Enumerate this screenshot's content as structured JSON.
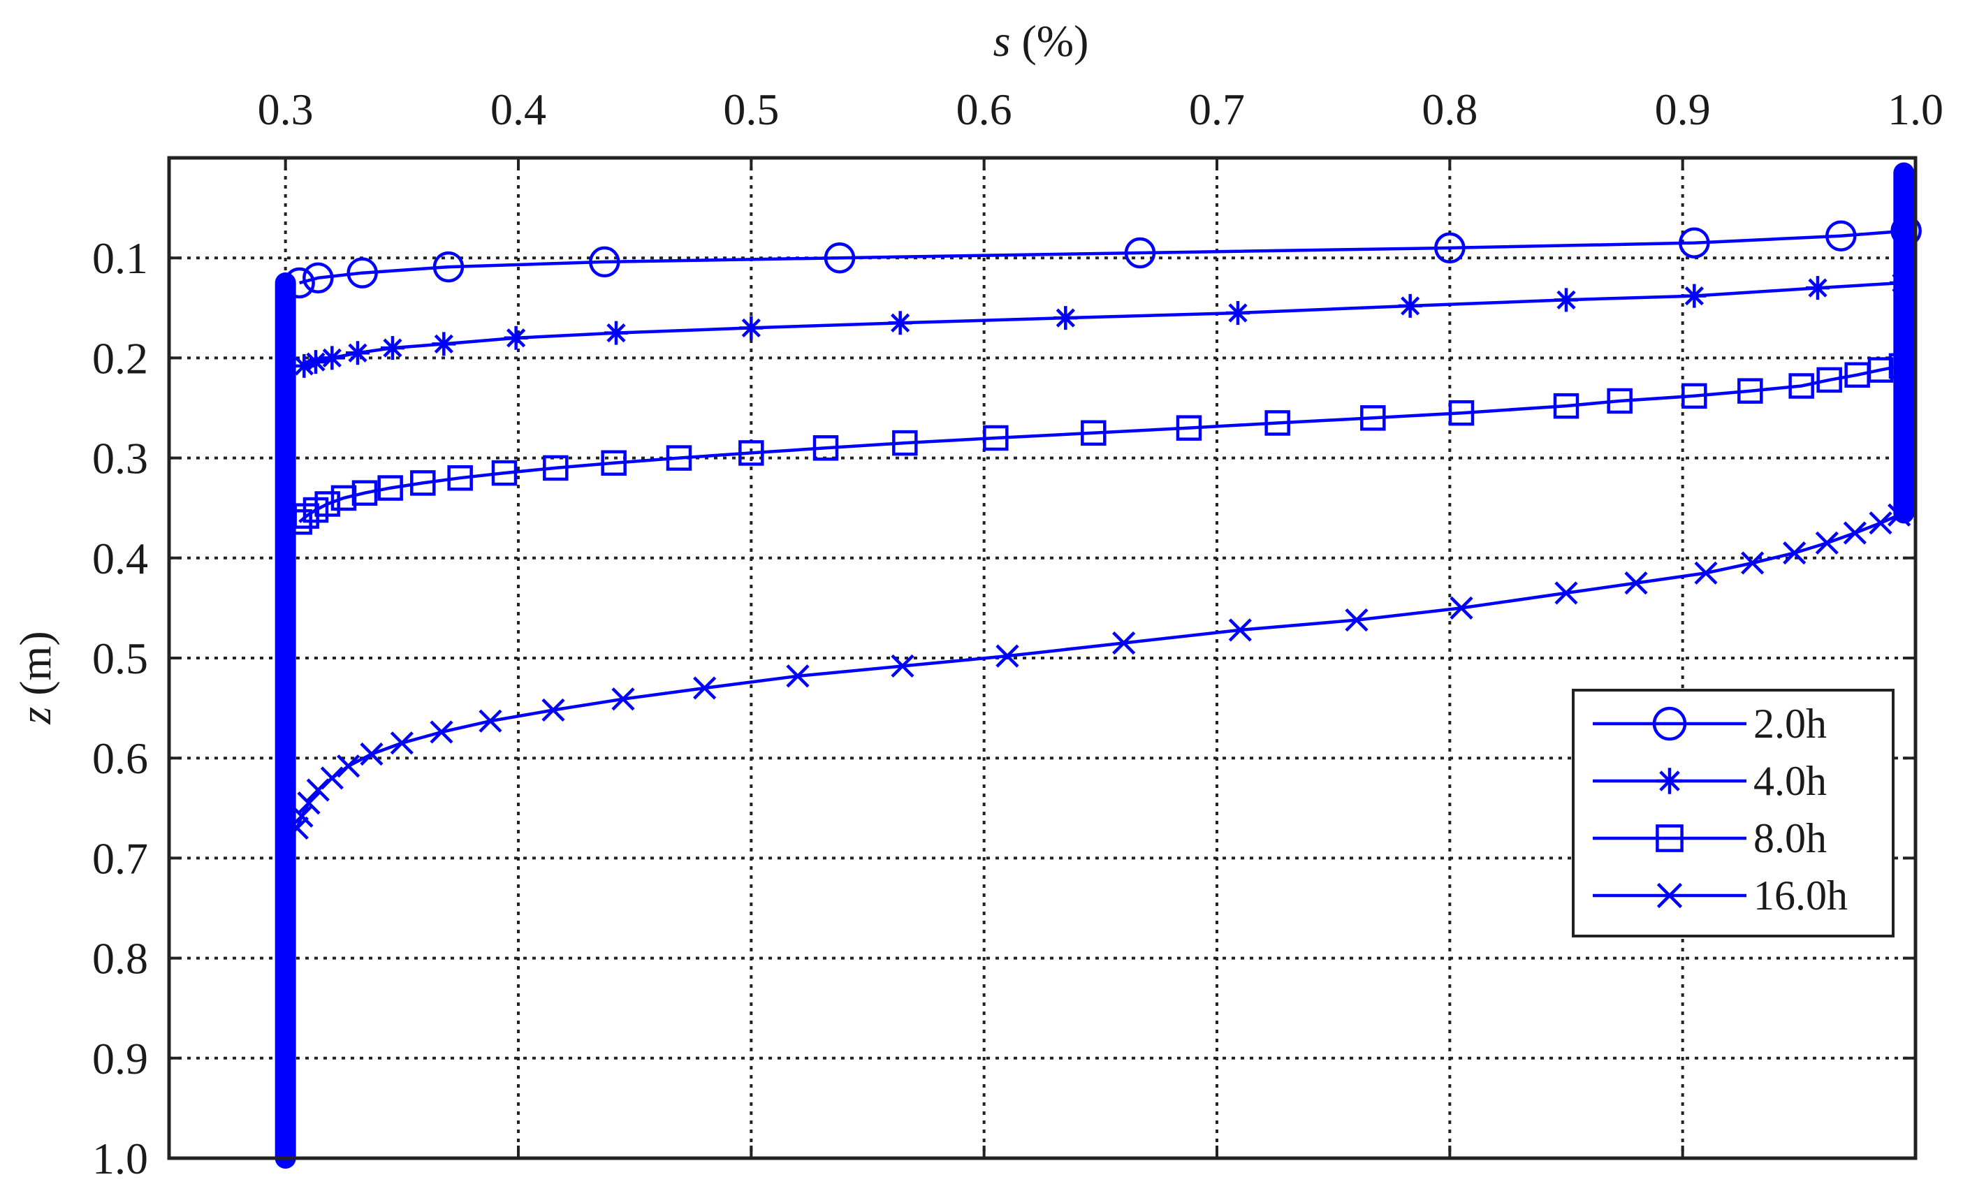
{
  "chart_data": {
    "type": "line",
    "title": "",
    "xlabel": {
      "symbol": "s",
      "unit": "(%)"
    },
    "ylabel": {
      "symbol": "z",
      "unit": "(m)"
    },
    "x_axis_position": "top",
    "y_axis_reversed": true,
    "xlim": [
      0.25,
      1.0
    ],
    "ylim": [
      0.0,
      1.0
    ],
    "xticks": [
      0.3,
      0.4,
      0.5,
      0.6,
      0.7,
      0.8,
      0.9,
      1.0
    ],
    "xtick_labels": [
      "0.3",
      "0.4",
      "0.5",
      "0.6",
      "0.7",
      "0.8",
      "0.9",
      "1.0"
    ],
    "yticks": [
      0.1,
      0.2,
      0.3,
      0.4,
      0.5,
      0.6,
      0.7,
      0.8,
      0.9,
      1.0
    ],
    "ytick_labels": [
      "0.1",
      "0.2",
      "0.3",
      "0.4",
      "0.5",
      "0.6",
      "0.7",
      "0.8",
      "0.9",
      "1.0"
    ],
    "grid": true,
    "legend_position": "right",
    "color": "#0000ff",
    "series": [
      {
        "name": "2.0h",
        "marker": "circle",
        "points": [
          [
            0.996,
            0.073
          ],
          [
            0.968,
            0.078
          ],
          [
            0.905,
            0.085
          ],
          [
            0.8,
            0.09
          ],
          [
            0.667,
            0.095
          ],
          [
            0.538,
            0.1
          ],
          [
            0.437,
            0.104
          ],
          [
            0.37,
            0.109
          ],
          [
            0.333,
            0.115
          ],
          [
            0.314,
            0.12
          ],
          [
            0.306,
            0.125
          ]
        ]
      },
      {
        "name": "4.0h",
        "marker": "asterisk",
        "points": [
          [
            0.994,
            0.125
          ],
          [
            0.958,
            0.13
          ],
          [
            0.905,
            0.138
          ],
          [
            0.85,
            0.142
          ],
          [
            0.783,
            0.148
          ],
          [
            0.709,
            0.155
          ],
          [
            0.635,
            0.16
          ],
          [
            0.564,
            0.165
          ],
          [
            0.5,
            0.17
          ],
          [
            0.442,
            0.175
          ],
          [
            0.399,
            0.18
          ],
          [
            0.368,
            0.186
          ],
          [
            0.346,
            0.19
          ],
          [
            0.331,
            0.195
          ],
          [
            0.32,
            0.2
          ],
          [
            0.313,
            0.204
          ],
          [
            0.308,
            0.208
          ]
        ]
      },
      {
        "name": "8.0h",
        "marker": "square",
        "points": [
          [
            0.994,
            0.208
          ],
          [
            0.985,
            0.212
          ],
          [
            0.975,
            0.217
          ],
          [
            0.963,
            0.222
          ],
          [
            0.951,
            0.228
          ],
          [
            0.929,
            0.233
          ],
          [
            0.905,
            0.238
          ],
          [
            0.873,
            0.243
          ],
          [
            0.85,
            0.248
          ],
          [
            0.805,
            0.255
          ],
          [
            0.767,
            0.26
          ],
          [
            0.726,
            0.265
          ],
          [
            0.688,
            0.27
          ],
          [
            0.647,
            0.275
          ],
          [
            0.605,
            0.28
          ],
          [
            0.566,
            0.285
          ],
          [
            0.532,
            0.29
          ],
          [
            0.5,
            0.295
          ],
          [
            0.469,
            0.3
          ],
          [
            0.441,
            0.305
          ],
          [
            0.416,
            0.31
          ],
          [
            0.394,
            0.315
          ],
          [
            0.375,
            0.32
          ],
          [
            0.359,
            0.325
          ],
          [
            0.345,
            0.33
          ],
          [
            0.334,
            0.335
          ],
          [
            0.325,
            0.34
          ],
          [
            0.318,
            0.346
          ],
          [
            0.313,
            0.352
          ],
          [
            0.309,
            0.358
          ],
          [
            0.306,
            0.364
          ]
        ]
      },
      {
        "name": "16.0h",
        "marker": "x",
        "points": [
          [
            0.993,
            0.357
          ],
          [
            0.985,
            0.365
          ],
          [
            0.974,
            0.375
          ],
          [
            0.962,
            0.385
          ],
          [
            0.948,
            0.395
          ],
          [
            0.93,
            0.405
          ],
          [
            0.91,
            0.415
          ],
          [
            0.88,
            0.425
          ],
          [
            0.85,
            0.435
          ],
          [
            0.805,
            0.45
          ],
          [
            0.76,
            0.462
          ],
          [
            0.71,
            0.472
          ],
          [
            0.66,
            0.485
          ],
          [
            0.61,
            0.498
          ],
          [
            0.565,
            0.508
          ],
          [
            0.52,
            0.518
          ],
          [
            0.48,
            0.53
          ],
          [
            0.445,
            0.541
          ],
          [
            0.415,
            0.552
          ],
          [
            0.388,
            0.563
          ],
          [
            0.367,
            0.574
          ],
          [
            0.35,
            0.585
          ],
          [
            0.337,
            0.596
          ],
          [
            0.327,
            0.608
          ],
          [
            0.32,
            0.62
          ],
          [
            0.314,
            0.632
          ],
          [
            0.31,
            0.645
          ],
          [
            0.307,
            0.658
          ],
          [
            0.305,
            0.67
          ]
        ]
      }
    ]
  }
}
